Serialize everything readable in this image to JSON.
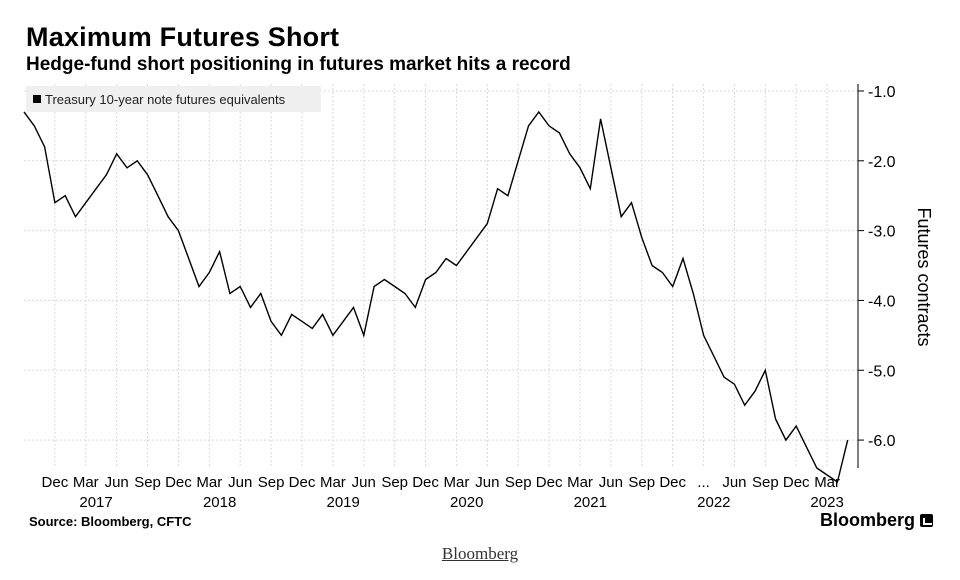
{
  "header": {
    "title": "Maximum Futures Short",
    "subtitle": "Hedge-fund short positioning in futures market hits a record"
  },
  "legend": {
    "label": "Treasury 10-year note futures equivalents"
  },
  "footer": {
    "source": "Source: Bloomberg, CFTC",
    "brand": "Bloomberg"
  },
  "caption": {
    "link_text": "Bloomberg"
  },
  "colors": {
    "line": "#000000",
    "grid": "#d9d9d9",
    "legend_bg": "#f0f0f0"
  },
  "chart_data": {
    "type": "line",
    "title": "Maximum Futures Short",
    "subtitle": "Hedge-fund short positioning in futures market hits a record",
    "ylabel": "Futures contracts",
    "ylim": [
      -6.4,
      -0.9
    ],
    "yticks": [
      -1.0,
      -2.0,
      -3.0,
      -4.0,
      -5.0,
      -6.0
    ],
    "ytick_labels": [
      "-1.0",
      "-2.0",
      "-3.0",
      "-4.0",
      "-5.0",
      "-6.0"
    ],
    "y_axis_position": "right",
    "grid": true,
    "legend_position": "top-left",
    "xlim": [
      "2016-09",
      "2023-06"
    ],
    "xticks": [
      {
        "x": "2016-12",
        "label": "Dec"
      },
      {
        "x": "2017-03",
        "label": "Mar"
      },
      {
        "x": "2017-06",
        "label": "Jun"
      },
      {
        "x": "2017-09",
        "label": "Sep"
      },
      {
        "x": "2017-12",
        "label": "Dec"
      },
      {
        "x": "2018-03",
        "label": "Mar"
      },
      {
        "x": "2018-06",
        "label": "Jun"
      },
      {
        "x": "2018-09",
        "label": "Sep"
      },
      {
        "x": "2018-12",
        "label": "Dec"
      },
      {
        "x": "2019-03",
        "label": "Mar"
      },
      {
        "x": "2019-06",
        "label": "Jun"
      },
      {
        "x": "2019-09",
        "label": "Sep"
      },
      {
        "x": "2019-12",
        "label": "Dec"
      },
      {
        "x": "2020-03",
        "label": "Mar"
      },
      {
        "x": "2020-06",
        "label": "Jun"
      },
      {
        "x": "2020-09",
        "label": "Sep"
      },
      {
        "x": "2020-12",
        "label": "Dec"
      },
      {
        "x": "2021-03",
        "label": "Mar"
      },
      {
        "x": "2021-06",
        "label": "Jun"
      },
      {
        "x": "2021-09",
        "label": "Sep"
      },
      {
        "x": "2021-12",
        "label": "Dec"
      },
      {
        "x": "2022-03",
        "label": "..."
      },
      {
        "x": "2022-06",
        "label": "Jun"
      },
      {
        "x": "2022-09",
        "label": "Sep"
      },
      {
        "x": "2022-12",
        "label": "Dec"
      },
      {
        "x": "2023-03",
        "label": "Mar"
      }
    ],
    "year_labels": [
      {
        "x": "2017-04",
        "label": "2017"
      },
      {
        "x": "2018-04",
        "label": "2018"
      },
      {
        "x": "2019-04",
        "label": "2019"
      },
      {
        "x": "2020-04",
        "label": "2020"
      },
      {
        "x": "2021-04",
        "label": "2021"
      },
      {
        "x": "2022-04",
        "label": "2022"
      },
      {
        "x": "2023-03",
        "label": "2023"
      }
    ],
    "series": [
      {
        "name": "Treasury 10-year note futures equivalents",
        "x": [
          "2016-09",
          "2016-10",
          "2016-11",
          "2016-12",
          "2017-01",
          "2017-02",
          "2017-03",
          "2017-04",
          "2017-05",
          "2017-06",
          "2017-07",
          "2017-08",
          "2017-09",
          "2017-10",
          "2017-11",
          "2017-12",
          "2018-01",
          "2018-02",
          "2018-03",
          "2018-04",
          "2018-05",
          "2018-06",
          "2018-07",
          "2018-08",
          "2018-09",
          "2018-10",
          "2018-11",
          "2018-12",
          "2019-01",
          "2019-02",
          "2019-03",
          "2019-04",
          "2019-05",
          "2019-06",
          "2019-07",
          "2019-08",
          "2019-09",
          "2019-10",
          "2019-11",
          "2019-12",
          "2020-01",
          "2020-02",
          "2020-03",
          "2020-04",
          "2020-05",
          "2020-06",
          "2020-07",
          "2020-08",
          "2020-09",
          "2020-10",
          "2020-11",
          "2020-12",
          "2021-01",
          "2021-02",
          "2021-03",
          "2021-04",
          "2021-05",
          "2021-06",
          "2021-07",
          "2021-08",
          "2021-09",
          "2021-10",
          "2021-11",
          "2021-12",
          "2022-01",
          "2022-02",
          "2022-03",
          "2022-04",
          "2022-05",
          "2022-06",
          "2022-07",
          "2022-08",
          "2022-09",
          "2022-10",
          "2022-11",
          "2022-12",
          "2023-01",
          "2023-02",
          "2023-03",
          "2023-04",
          "2023-05"
        ],
        "y": [
          -1.3,
          -1.5,
          -1.8,
          -2.6,
          -2.5,
          -2.8,
          -2.6,
          -2.4,
          -2.2,
          -1.9,
          -2.1,
          -2.0,
          -2.2,
          -2.5,
          -2.8,
          -3.0,
          -3.4,
          -3.8,
          -3.6,
          -3.3,
          -3.9,
          -3.8,
          -4.1,
          -3.9,
          -4.3,
          -4.5,
          -4.2,
          -4.3,
          -4.4,
          -4.2,
          -4.5,
          -4.3,
          -4.1,
          -4.5,
          -3.8,
          -3.7,
          -3.8,
          -3.9,
          -4.1,
          -3.7,
          -3.6,
          -3.4,
          -3.5,
          -3.3,
          -3.1,
          -2.9,
          -2.4,
          -2.5,
          -2.0,
          -1.5,
          -1.3,
          -1.5,
          -1.6,
          -1.9,
          -2.1,
          -2.4,
          -1.4,
          -2.1,
          -2.8,
          -2.6,
          -3.1,
          -3.5,
          -3.6,
          -3.8,
          -3.4,
          -3.9,
          -4.5,
          -4.8,
          -5.1,
          -5.2,
          -5.5,
          -5.3,
          -5.0,
          -5.7,
          -6.0,
          -5.8,
          -6.1,
          -6.4,
          -6.5,
          -6.6,
          -6.0
        ]
      }
    ]
  }
}
